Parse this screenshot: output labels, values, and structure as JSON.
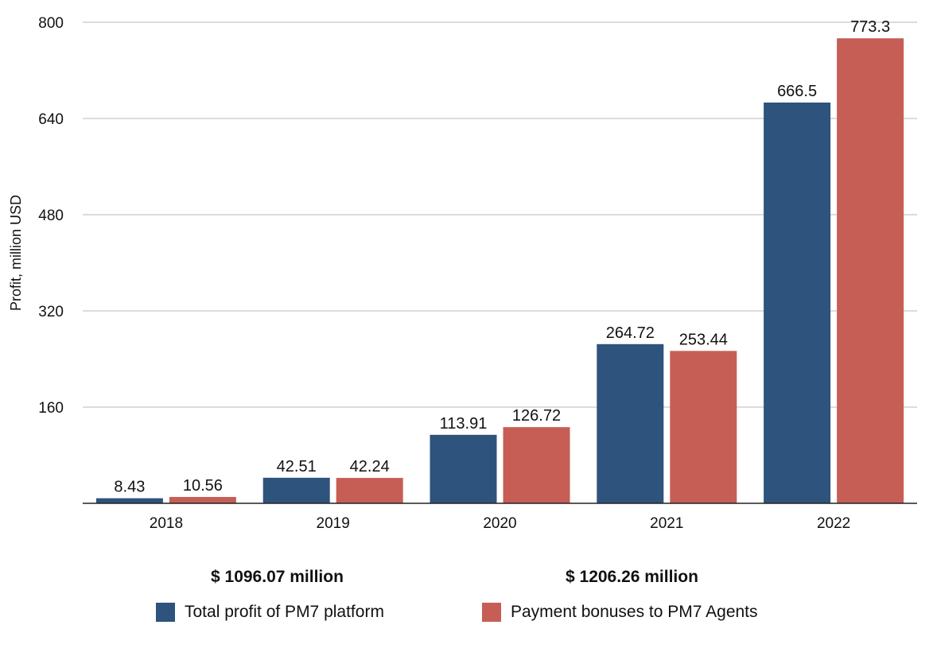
{
  "colors": {
    "series_total": "#2e537d",
    "series_bonus": "#c65e56"
  },
  "chart_data": {
    "type": "bar",
    "categories": [
      "2018",
      "2019",
      "2020",
      "2021",
      "2022"
    ],
    "series": [
      {
        "name": "Total profit of PM7 platform",
        "values": [
          8.43,
          42.51,
          113.91,
          264.72,
          666.5
        ],
        "labels": [
          "8.43",
          "42.51",
          "113.91",
          "264.72",
          "666.5"
        ]
      },
      {
        "name": "Payment bonuses to PM7 Agents",
        "values": [
          10.56,
          42.24,
          126.72,
          253.44,
          773.3
        ],
        "labels": [
          "10.56",
          "42.24",
          "126.72",
          "253.44",
          "773.3"
        ]
      }
    ],
    "ylabel": "Profit, million USD",
    "ylim": [
      0,
      800
    ],
    "yticks": [
      "160",
      "320",
      "480",
      "640",
      "800"
    ],
    "grid": true,
    "legend_position": "bottom"
  },
  "totals": {
    "total_profit": "$ 1096.07 million",
    "total_bonuses": "$ 1206.26 million"
  },
  "legend": {
    "item1": "Total profit of PM7 platform",
    "item2": "Payment bonuses to PM7 Agents"
  }
}
